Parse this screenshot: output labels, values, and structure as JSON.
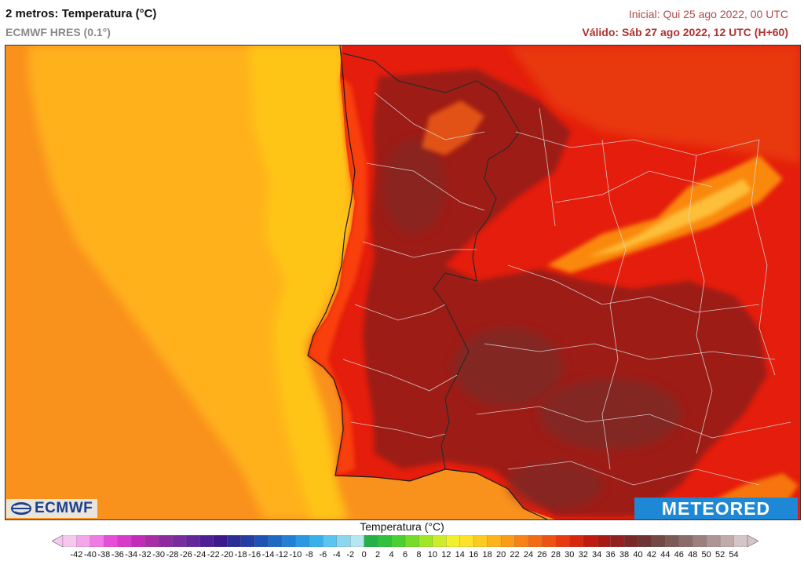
{
  "header": {
    "title": "2 metros: Temperatura (°C)",
    "model": "ECMWF HRES (0.1°)",
    "initial": "Inicial: Qui 25 ago 2022, 00 UTC",
    "valid": "Válido: Sáb 27 ago 2022, 12 UTC (H+60)"
  },
  "logos": {
    "left": "ECMWF",
    "right": "METEORED"
  },
  "colors": {
    "ocean_far": "#f9911d",
    "ocean_near": "#ffc519",
    "land_hot": "#e41d0c",
    "land_very_hot": "#9e1b14",
    "land_extreme": "#7d2a28",
    "mountain": "#ff9b10"
  },
  "legend": {
    "title": "Temperatura (°C)",
    "ticks": [
      "-42",
      "-40",
      "-38",
      "-36",
      "-34",
      "-32",
      "-30",
      "-28",
      "-26",
      "-24",
      "-22",
      "-20",
      "-18",
      "-16",
      "-14",
      "-12",
      "-10",
      "-8",
      "-6",
      "-4",
      "-2",
      "0",
      "2",
      "4",
      "6",
      "8",
      "10",
      "12",
      "14",
      "16",
      "18",
      "20",
      "22",
      "24",
      "26",
      "28",
      "30",
      "32",
      "34",
      "36",
      "38",
      "40",
      "42",
      "44",
      "46",
      "48",
      "50",
      "52",
      "54"
    ],
    "colors": [
      "#f7c8ee",
      "#f5a6ea",
      "#f07ae6",
      "#e64ed8",
      "#d83ac9",
      "#c22cb8",
      "#a82ea8",
      "#8e2aa0",
      "#7a2c9e",
      "#64269a",
      "#4e1e94",
      "#3c1a8a",
      "#2c2e98",
      "#253ea6",
      "#1f52b6",
      "#1e68c6",
      "#2280d6",
      "#2a98e2",
      "#38b0ea",
      "#5ac6ef",
      "#8ad8ef",
      "#b6e6ef",
      "#25b04a",
      "#30c23c",
      "#4ad030",
      "#76dc2a",
      "#a2e628",
      "#ccee2a",
      "#f2f02c",
      "#fde12a",
      "#fdcc22",
      "#fdb41c",
      "#fb9c18",
      "#f88216",
      "#f46a14",
      "#ee5212",
      "#e63a10",
      "#d8260e",
      "#c01a10",
      "#a81a16",
      "#922022",
      "#7c2828",
      "#6e3434",
      "#744844",
      "#7e5a56",
      "#8c6c6a",
      "#9c807e",
      "#ae9494",
      "#c0aaaa",
      "#d4c6c6"
    ]
  }
}
